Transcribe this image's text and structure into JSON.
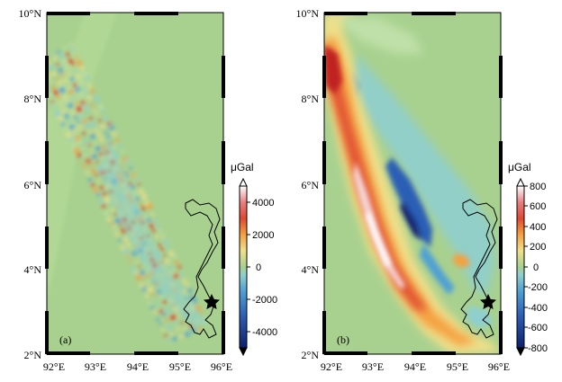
{
  "panels": [
    {
      "label": "(a)",
      "lat_labels": [
        "10°N",
        "8°N",
        "6°N",
        "4°N",
        "2°N"
      ],
      "lon_labels": [
        "92°E",
        "93°E",
        "94°E",
        "95°E",
        "96°E"
      ],
      "colorbar": {
        "unit": "μGal",
        "range": [
          -5000,
          5000
        ],
        "tick_labels": [
          "4000",
          "2000",
          "0",
          "-2000",
          "-4000"
        ]
      }
    },
    {
      "label": "(b)",
      "lat_labels": [
        "10°N",
        "8°N",
        "6°N",
        "4°N",
        "2°N"
      ],
      "lon_labels": [
        "92°E",
        "93°E",
        "94°E",
        "95°E",
        "96°E"
      ],
      "colorbar": {
        "unit": "μGal",
        "range": [
          -800,
          800
        ],
        "tick_labels": [
          "800",
          "600",
          "400",
          "200",
          "0",
          "-200",
          "-400",
          "-600",
          "-800"
        ]
      }
    }
  ],
  "map_extent": {
    "lon": [
      91.8,
      96.0
    ],
    "lat": [
      2.0,
      10.0
    ]
  },
  "epicenter_marker": {
    "symbol": "star",
    "lon": 95.8,
    "lat": 3.3
  },
  "colormap": [
    "#0d1f6e",
    "#2c5fb5",
    "#4fa0d4",
    "#8fcfcf",
    "#bfe0a8",
    "#a8d18f",
    "#f0e08a",
    "#f5a040",
    "#e04830",
    "#c02020",
    "#f5d5d5",
    "#ffffff"
  ]
}
